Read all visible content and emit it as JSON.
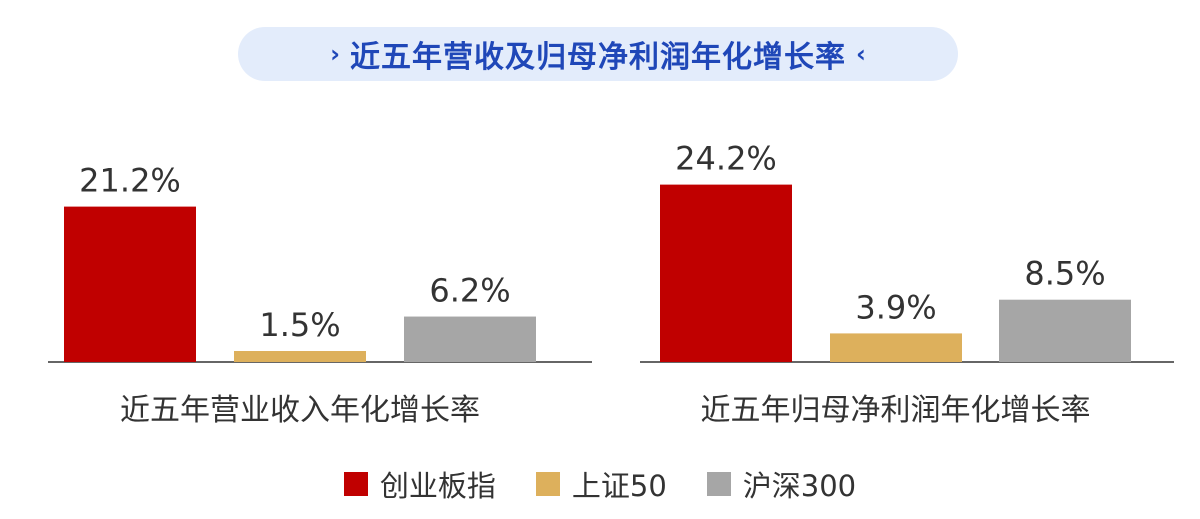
{
  "title": "近五年营收及归母净利润年化增长率",
  "title_icons": {
    "left": "chevron-right-icon",
    "right": "chevron-left-icon"
  },
  "colors": {
    "title_bg": "#e3ecfb",
    "title_text": "#1f47b8",
    "axis": "#666666",
    "text": "#333333"
  },
  "chart_data": {
    "type": "bar",
    "categories": [
      "近五年营业收入年化增长率",
      "近五年归母净利润年化增长率"
    ],
    "unit": "%",
    "series": [
      {
        "name": "创业板指",
        "color": "#c00000",
        "values": [
          21.2,
          24.2
        ],
        "labels": [
          "21.2%",
          "24.2%"
        ]
      },
      {
        "name": "上证50",
        "color": "#ddb05c",
        "values": [
          1.5,
          3.9
        ],
        "labels": [
          "1.5%",
          "3.9%"
        ]
      },
      {
        "name": "沪深300",
        "color": "#a6a6a6",
        "values": [
          6.2,
          8.5
        ],
        "labels": [
          "6.2%",
          "8.5%"
        ]
      }
    ],
    "legend_position": "bottom",
    "grid": false
  }
}
